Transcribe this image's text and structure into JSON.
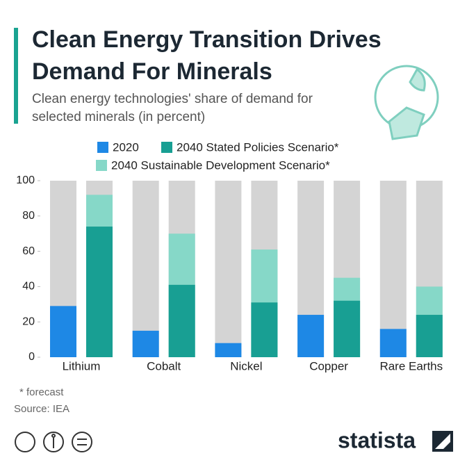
{
  "chart_data": {
    "type": "bar",
    "title": "Clean Energy Transition Drives Demand For Minerals",
    "subtitle": "Clean energy technologies' share of demand for selected minerals (in percent)",
    "categories": [
      "Lithium",
      "Cobalt",
      "Nickel",
      "Copper",
      "Rare Earths"
    ],
    "series": [
      {
        "name": "2020",
        "color": "#1e88e5",
        "values": [
          29,
          15,
          8,
          24,
          16
        ]
      },
      {
        "name": "2040 Stated Policies Scenario*",
        "color": "#189f93",
        "values": [
          74,
          41,
          31,
          32,
          24
        ]
      },
      {
        "name": "2040 Sustainable Development Scenario*",
        "color": "#86d8c8",
        "values": [
          92,
          70,
          61,
          45,
          40
        ]
      }
    ],
    "ylim": [
      0,
      100
    ],
    "yticks": [
      0,
      20,
      40,
      60,
      80,
      100
    ],
    "footnote": "* forecast",
    "source": "Source: IEA",
    "brand": "statista"
  }
}
